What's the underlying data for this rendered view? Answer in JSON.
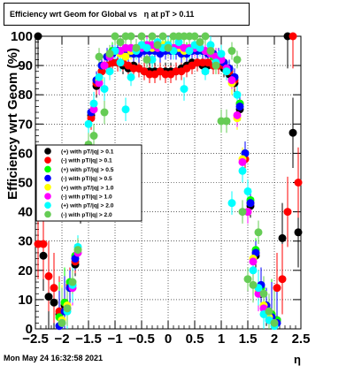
{
  "chart_data": {
    "type": "scatter",
    "title": "Efficiency wrt Geom for Global vs",
    "title_eta": "η",
    "title_tail": "at pT > 0.11",
    "xlabel": "η",
    "ylabel": "Efficiency wrt Geom (%)",
    "xlim": [
      -2.5,
      2.5
    ],
    "ylim": [
      0,
      100
    ],
    "x_ticks": [
      -2.5,
      -2,
      -1.5,
      -1,
      -0.5,
      0,
      0.5,
      1,
      1.5,
      2,
      2.5
    ],
    "x_tick_labels": [
      "−2.5",
      "−2",
      "−1.5",
      "−1",
      "−0.5",
      "0",
      "0.5",
      "1",
      "1.5",
      "2",
      "2.5"
    ],
    "y_ticks": [
      0,
      10,
      20,
      30,
      40,
      50,
      60,
      70,
      80,
      90,
      100
    ],
    "y_tick_labels": [
      "0",
      "10",
      "20",
      "30",
      "40",
      "50",
      "60",
      "70",
      "80",
      "90",
      "100"
    ],
    "grid": true,
    "legend_position": "center-left",
    "series": [
      {
        "name": "(+) with pT/|q| > 0.1",
        "color": "#000000",
        "x": [
          -2.45,
          -2.35,
          -2.25,
          -2.15,
          -2.05,
          -1.95,
          -1.85,
          -1.75,
          -1.65,
          -1.55,
          -1.45,
          -1.35,
          -1.25,
          -1.15,
          -1.05,
          -0.95,
          -0.85,
          -0.75,
          -0.65,
          -0.55,
          -0.45,
          -0.35,
          -0.25,
          -0.15,
          -0.05,
          0.05,
          0.15,
          0.25,
          0.35,
          0.45,
          0.55,
          0.65,
          0.75,
          0.85,
          0.95,
          1.05,
          1.15,
          1.25,
          1.35,
          1.45,
          1.55,
          1.65,
          1.75,
          1.85,
          1.95,
          2.05,
          2.15,
          2.25,
          2.35,
          2.45
        ],
        "y": [
          100,
          25,
          11,
          9,
          5,
          8,
          14,
          22,
          40,
          58,
          73,
          83,
          88,
          90,
          91,
          91,
          90,
          89,
          90,
          89,
          88,
          88,
          88,
          88,
          88,
          88,
          88,
          89,
          90,
          91,
          91,
          90,
          90,
          90,
          90,
          89,
          87,
          84,
          75,
          60,
          42,
          25,
          12,
          7,
          4,
          3,
          31,
          100,
          67,
          33
        ]
      },
      {
        "name": "(-) with pT/|q| > 0.1",
        "color": "#ff0000",
        "x": [
          -2.45,
          -2.35,
          -2.25,
          -2.15,
          -2.05,
          -1.95,
          -1.85,
          -1.75,
          -1.65,
          -1.55,
          -1.45,
          -1.35,
          -1.25,
          -1.15,
          -1.05,
          -0.95,
          -0.85,
          -0.75,
          -0.65,
          -0.55,
          -0.45,
          -0.35,
          -0.25,
          -0.15,
          -0.05,
          0.05,
          0.15,
          0.25,
          0.35,
          0.45,
          0.55,
          0.65,
          0.75,
          0.85,
          0.95,
          1.05,
          1.15,
          1.25,
          1.35,
          1.45,
          1.55,
          1.65,
          1.75,
          1.85,
          1.95,
          2.05,
          2.15,
          2.25,
          2.35,
          2.45
        ],
        "y": [
          29,
          29,
          18,
          14,
          6,
          9,
          15,
          23,
          41,
          57,
          72,
          84,
          88,
          90,
          91,
          91,
          91,
          90,
          89,
          89,
          88,
          87,
          87,
          88,
          87,
          87,
          88,
          88,
          89,
          90,
          91,
          91,
          91,
          90,
          90,
          90,
          88,
          85,
          77,
          58,
          43,
          26,
          14,
          8,
          5,
          14,
          17,
          40,
          100,
          50
        ]
      },
      {
        "name": "(+) with pT/|q| > 0.5",
        "color": "#00ff00",
        "x": [
          -2.05,
          -1.95,
          -1.85,
          -1.75,
          -1.65,
          -1.55,
          -1.45,
          -1.35,
          -1.25,
          -1.15,
          -1.05,
          -0.95,
          -0.85,
          -0.75,
          -0.65,
          -0.55,
          -0.45,
          -0.35,
          -0.25,
          -0.15,
          -0.05,
          0.05,
          0.15,
          0.25,
          0.35,
          0.45,
          0.55,
          0.65,
          0.75,
          0.85,
          0.95,
          1.05,
          1.15,
          1.25,
          1.35,
          1.45,
          1.55,
          1.65,
          1.75,
          1.85,
          1.95,
          2.05
        ],
        "y": [
          4,
          9,
          16,
          25,
          42,
          60,
          74,
          85,
          90,
          93,
          95,
          95,
          94,
          94,
          94,
          95,
          96,
          96,
          95,
          95,
          96,
          96,
          95,
          94,
          95,
          95,
          95,
          95,
          94,
          93,
          93,
          91,
          89,
          86,
          77,
          60,
          44,
          27,
          14,
          8,
          5,
          3
        ]
      },
      {
        "name": "(-) with pT/|q| > 0.5",
        "color": "#0000ff",
        "x": [
          -2.05,
          -1.95,
          -1.85,
          -1.75,
          -1.65,
          -1.55,
          -1.45,
          -1.35,
          -1.25,
          -1.15,
          -1.05,
          -0.95,
          -0.85,
          -0.75,
          -0.65,
          -0.55,
          -0.45,
          -0.35,
          -0.25,
          -0.15,
          -0.05,
          0.05,
          0.15,
          0.25,
          0.35,
          0.45,
          0.55,
          0.65,
          0.75,
          0.85,
          0.95,
          1.05,
          1.15,
          1.25,
          1.35,
          1.45,
          1.55,
          1.65,
          1.75,
          1.85,
          1.95,
          2.05
        ],
        "y": [
          1,
          6,
          14,
          24,
          41,
          59,
          74,
          85,
          90,
          93,
          94,
          95,
          95,
          94,
          94,
          94,
          95,
          95,
          95,
          94,
          95,
          95,
          95,
          94,
          94,
          95,
          95,
          95,
          94,
          94,
          93,
          91,
          89,
          86,
          76,
          60,
          43,
          26,
          15,
          8,
          4,
          2
        ]
      },
      {
        "name": "(+) with pT/|q| > 1.0",
        "color": "#ffff00",
        "x": [
          -2.0,
          -1.9,
          -1.8,
          -1.7,
          -1.6,
          -1.5,
          -1.4,
          -1.3,
          -1.2,
          -1.1,
          -1.0,
          -0.9,
          -0.8,
          -0.7,
          -0.6,
          -0.5,
          -0.4,
          -0.3,
          -0.2,
          -0.1,
          0.0,
          0.1,
          0.2,
          0.3,
          0.4,
          0.5,
          0.6,
          0.7,
          0.8,
          0.9,
          1.0,
          1.1,
          1.2,
          1.3,
          1.4,
          1.5,
          1.6,
          1.7,
          1.8,
          1.9,
          2.0
        ],
        "y": [
          3,
          8,
          15,
          27,
          45,
          62,
          75,
          85,
          90,
          94,
          95,
          94,
          93,
          95,
          96,
          97,
          97,
          96,
          96,
          97,
          97,
          96,
          96,
          95,
          96,
          96,
          96,
          95,
          95,
          93,
          92,
          88,
          84,
          72,
          58,
          40,
          24,
          13,
          8,
          4,
          2
        ]
      },
      {
        "name": "(-) with pT/|q| > 1.0",
        "color": "#ff00ff",
        "x": [
          -2.0,
          -1.9,
          -1.8,
          -1.7,
          -1.6,
          -1.5,
          -1.4,
          -1.3,
          -1.2,
          -1.1,
          -1.0,
          -0.9,
          -0.8,
          -0.7,
          -0.6,
          -0.5,
          -0.4,
          -0.3,
          -0.2,
          -0.1,
          0.0,
          0.1,
          0.2,
          0.3,
          0.4,
          0.5,
          0.6,
          0.7,
          0.8,
          0.9,
          1.0,
          1.1,
          1.2,
          1.3,
          1.4,
          1.5,
          1.6,
          1.7,
          1.8,
          1.9,
          2.0
        ],
        "y": [
          2,
          7,
          14,
          26,
          44,
          61,
          75,
          84,
          90,
          93,
          95,
          95,
          96,
          96,
          96,
          96,
          97,
          97,
          96,
          96,
          96,
          96,
          97,
          96,
          96,
          96,
          96,
          95,
          94,
          93,
          92,
          89,
          85,
          73,
          57,
          40,
          23,
          12,
          7,
          3,
          2
        ]
      },
      {
        "name": "(+) with pT/|q| > 2.0",
        "color": "#00ffff",
        "x": [
          -2.0,
          -1.9,
          -1.8,
          -1.7,
          -1.6,
          -1.5,
          -1.4,
          -1.3,
          -1.2,
          -1.1,
          -1.0,
          -0.9,
          -0.8,
          -0.7,
          -0.6,
          -0.5,
          -0.4,
          -0.3,
          -0.2,
          -0.1,
          0.0,
          0.1,
          0.2,
          0.3,
          0.4,
          0.5,
          0.6,
          0.7,
          0.8,
          0.9,
          1.0,
          1.1,
          1.2,
          1.3,
          1.4,
          1.5,
          1.6,
          1.7,
          1.8,
          1.9,
          2.0
        ],
        "y": [
          2,
          6,
          15,
          28,
          46,
          70,
          77,
          86,
          82,
          88,
          95,
          91,
          75,
          86,
          95,
          97,
          96,
          92,
          98,
          96,
          97,
          95,
          98,
          82,
          95,
          97,
          96,
          88,
          97,
          91,
          94,
          88,
          43,
          80,
          54,
          47,
          20,
          14,
          5,
          3,
          1
        ]
      },
      {
        "name": "(-) with pT/|q| > 2.0",
        "color": "#66cc55",
        "x": [
          -2.0,
          -1.9,
          -1.8,
          -1.7,
          -1.6,
          -1.5,
          -1.4,
          -1.3,
          -1.2,
          -1.1,
          -1.0,
          -0.9,
          -0.8,
          -0.7,
          -0.6,
          -0.5,
          -0.4,
          -0.3,
          -0.2,
          -0.1,
          0.0,
          0.1,
          0.2,
          0.3,
          0.4,
          0.5,
          0.6,
          0.7,
          0.8,
          0.9,
          1.0,
          1.1,
          1.2,
          1.3,
          1.4,
          1.5,
          1.6,
          1.7,
          1.8,
          1.9,
          2.0
        ],
        "y": [
          2,
          7,
          16,
          27,
          47,
          63,
          66,
          93,
          74,
          94,
          100,
          98,
          100,
          100,
          96,
          100,
          92,
          100,
          97,
          100,
          96,
          100,
          100,
          100,
          100,
          100,
          98,
          100,
          95,
          90,
          71,
          71,
          95,
          92,
          40,
          17,
          15,
          33,
          12,
          6,
          2
        ]
      }
    ]
  },
  "footer": {
    "date": "Mon May 24 16:32:58 2021"
  }
}
